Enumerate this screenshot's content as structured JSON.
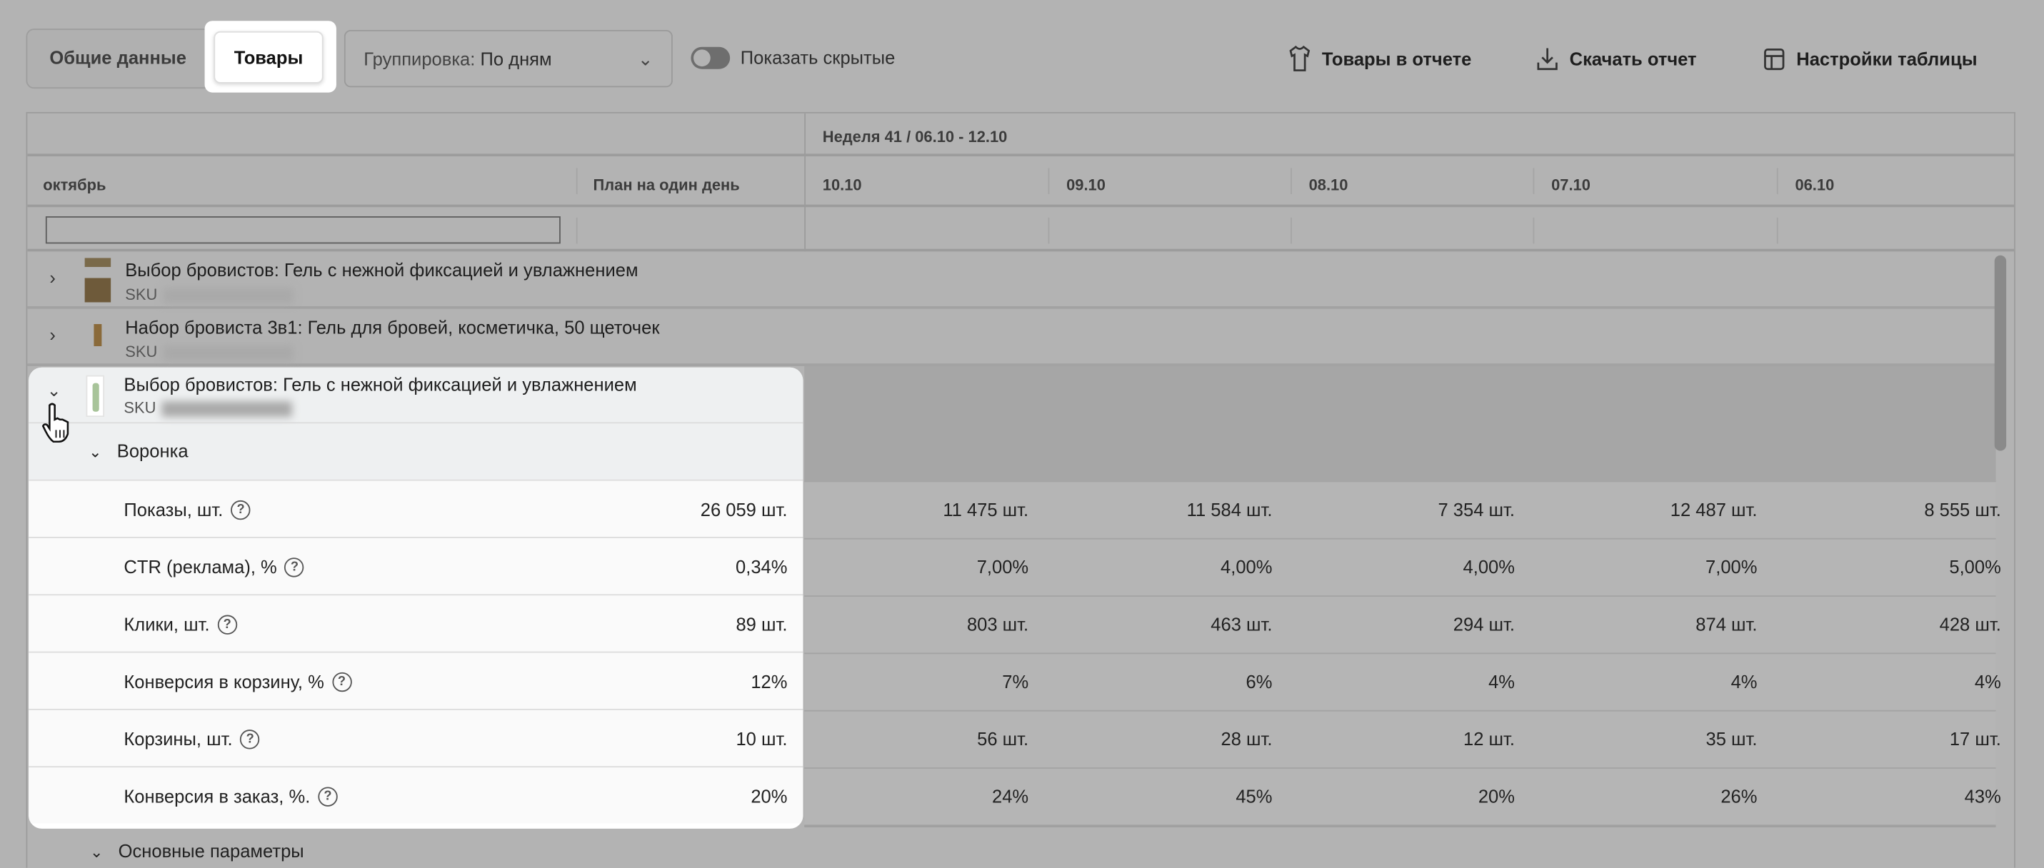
{
  "toolbar": {
    "tabs": [
      {
        "label": "Общие данные",
        "active": false
      },
      {
        "label": "Товары",
        "active": true
      }
    ],
    "grouping": {
      "label": "Группировка:",
      "value": "По дням"
    },
    "show_hidden": {
      "label": "Показать скрытые",
      "on": false
    },
    "actions": [
      {
        "label": "Товары в отчете",
        "icon": "tshirt-icon"
      },
      {
        "label": "Скачать отчет",
        "icon": "download-icon"
      },
      {
        "label": "Настройки таблицы",
        "icon": "table-settings-icon"
      }
    ]
  },
  "table": {
    "week": "Неделя 41 / 06.10 - 12.10",
    "month": "октябрь",
    "plan_header": "План на один день",
    "dates": [
      "10.10",
      "09.10",
      "08.10",
      "07.10",
      "06.10"
    ],
    "products": [
      {
        "name": "Выбор бровистов: Гель с нежной фиксацией и увлажнением",
        "sku_label": "SKU",
        "expanded": false
      },
      {
        "name": "Набор бровиста 3в1: Гель для бровей, косметичка, 50 щеточек",
        "sku_label": "SKU",
        "expanded": false
      },
      {
        "name": "Выбор бровистов: Гель с нежной фиксацией и увлажнением",
        "sku_label": "SKU",
        "expanded": true
      }
    ],
    "group_funnel": "Воронка",
    "metrics": [
      {
        "label": "Показы, шт.",
        "plan": "26 059 шт.",
        "values": [
          "11 475 шт.",
          "11 584 шт.",
          "7 354 шт.",
          "12 487 шт.",
          "8 555 шт."
        ]
      },
      {
        "label": "CTR (реклама), %",
        "plan": "0,34%",
        "values": [
          "7,00%",
          "4,00%",
          "4,00%",
          "7,00%",
          "5,00%"
        ]
      },
      {
        "label": "Клики, шт.",
        "plan": "89 шт.",
        "values": [
          "803 шт.",
          "463 шт.",
          "294 шт.",
          "874 шт.",
          "428 шт."
        ]
      },
      {
        "label": "Конверсия в корзину, %",
        "plan": "12%",
        "values": [
          "7%",
          "6%",
          "4%",
          "4%",
          "4%"
        ]
      },
      {
        "label": "Корзины, шт.",
        "plan": "10 шт.",
        "values": [
          "56 шт.",
          "28 шт.",
          "12 шт.",
          "35 шт.",
          "17 шт."
        ]
      },
      {
        "label": "Конверсия в заказ, %.",
        "plan": "20%",
        "values": [
          "24%",
          "45%",
          "20%",
          "26%",
          "43%"
        ]
      }
    ],
    "group_main": "Основные параметры"
  },
  "colors": {
    "overlay": "#b3b3b3",
    "spotlight": "#ffffff"
  }
}
